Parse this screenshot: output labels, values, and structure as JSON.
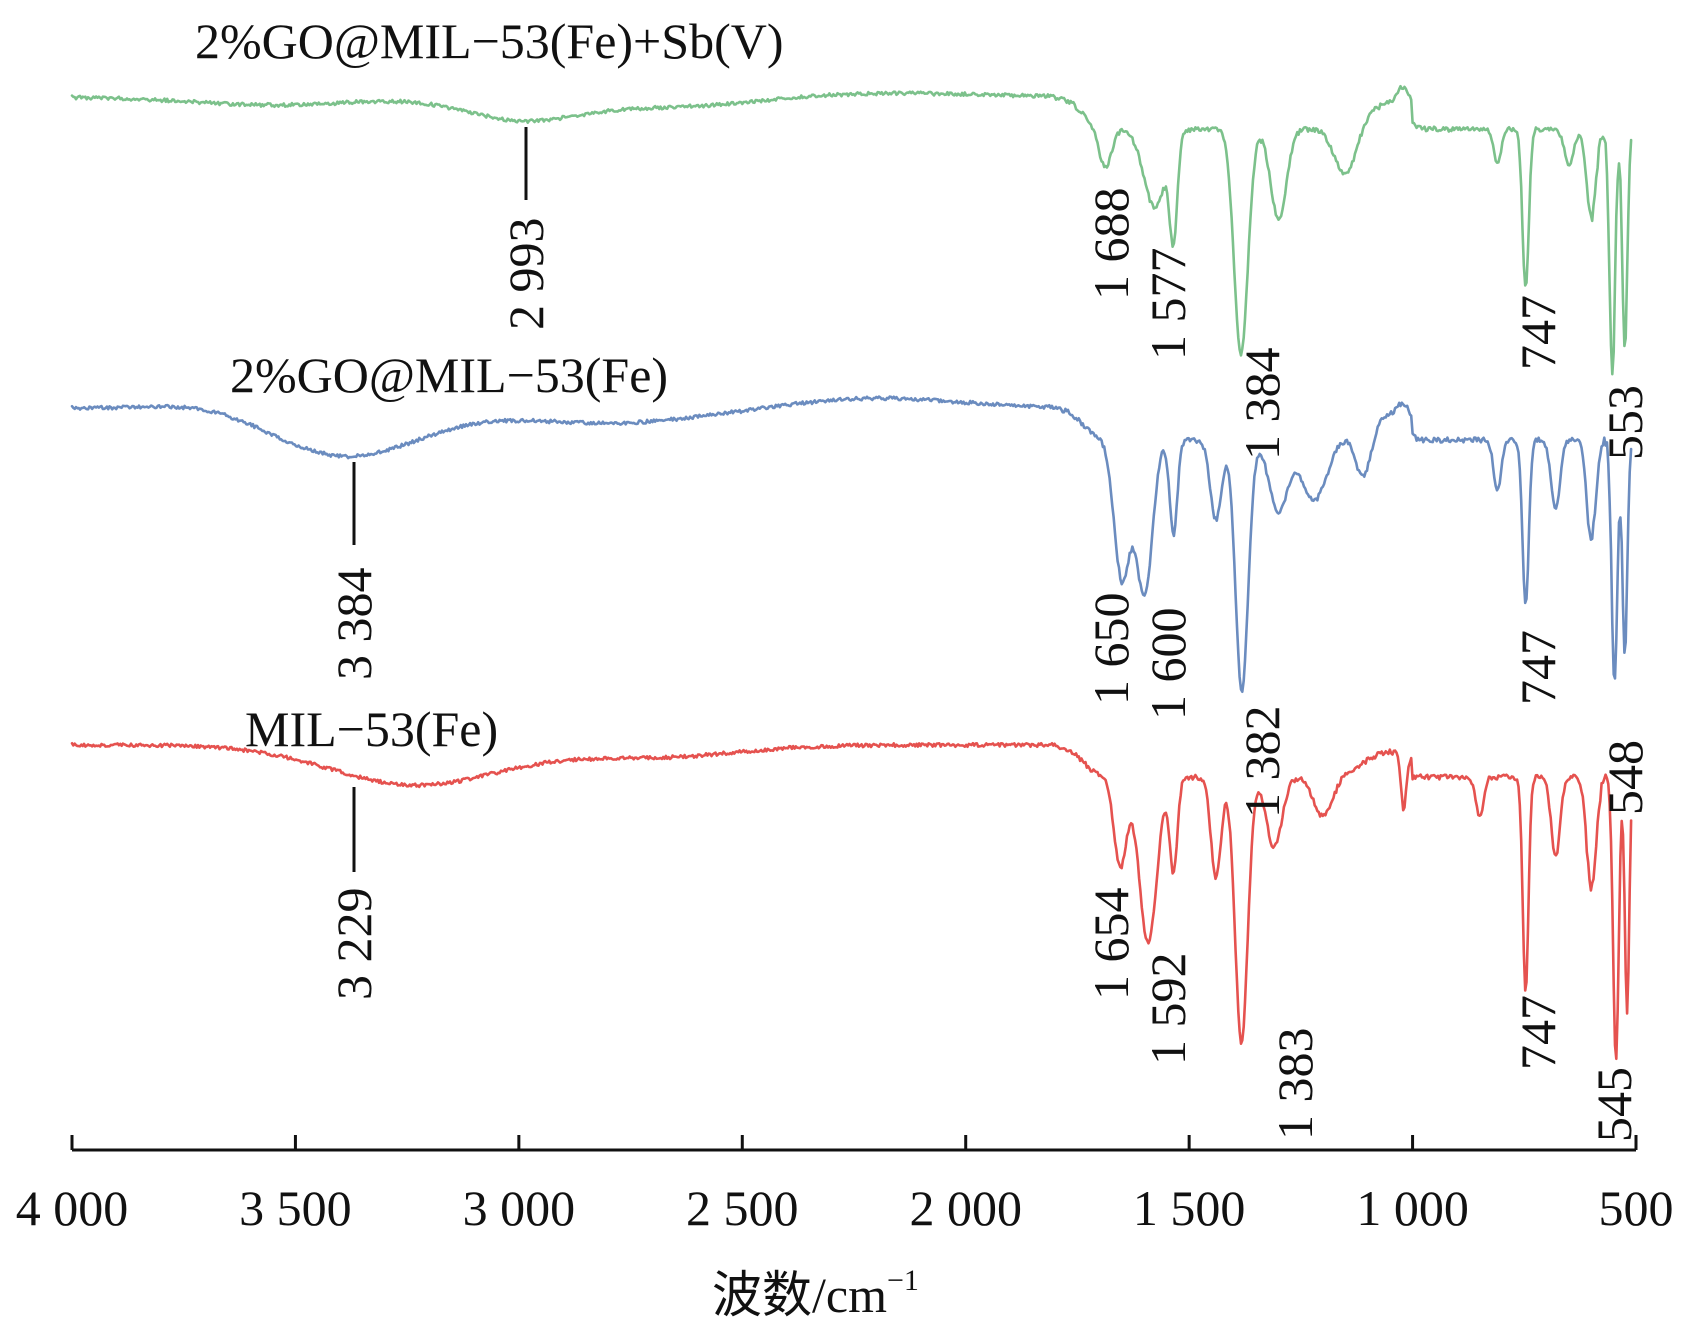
{
  "chart_data": {
    "type": "line",
    "title": "",
    "xlabel": "波数/cm",
    "xlabel_superscript": "−1",
    "ylabel": "",
    "xlim": [
      4000,
      500
    ],
    "x_reversed": true,
    "xticks": [
      4000,
      3500,
      3000,
      2500,
      2000,
      1500,
      1000,
      500
    ],
    "xtick_labels": [
      "4 000",
      "3 500",
      "3 000",
      "2 500",
      "2 000",
      "1 500",
      "1 000",
      "500"
    ],
    "y_axis_shown": false,
    "grid": false,
    "legend": "none (series labelled directly above each trace)",
    "series": [
      {
        "name": "2%GO@MIL−53(Fe)+Sb(V)",
        "color": "#7cc18b",
        "peaks": [
          {
            "x": 2993,
            "label": "2 993"
          },
          {
            "x": 1688,
            "label": "1 688"
          },
          {
            "x": 1577,
            "label": "1 577"
          },
          {
            "x": 1384,
            "label": "1 384"
          },
          {
            "x": 747,
            "label": "747"
          },
          {
            "x": 553,
            "label": "553"
          }
        ]
      },
      {
        "name": "2%GO@MIL−53(Fe)",
        "color": "#6b8cbf",
        "peaks": [
          {
            "x": 3384,
            "label": "3 384"
          },
          {
            "x": 1650,
            "label": "1 650"
          },
          {
            "x": 1600,
            "label": "1 600"
          },
          {
            "x": 1382,
            "label": "1 382"
          },
          {
            "x": 747,
            "label": "747"
          },
          {
            "x": 548,
            "label": "548"
          }
        ]
      },
      {
        "name": "MIL−53(Fe)",
        "color": "#e5524f",
        "peaks": [
          {
            "x": 3229,
            "label": "3 229"
          },
          {
            "x": 1654,
            "label": "1 654"
          },
          {
            "x": 1592,
            "label": "1 592"
          },
          {
            "x": 1383,
            "label": "1 383"
          },
          {
            "x": 747,
            "label": "747"
          },
          {
            "x": 545,
            "label": "545"
          }
        ]
      }
    ]
  }
}
